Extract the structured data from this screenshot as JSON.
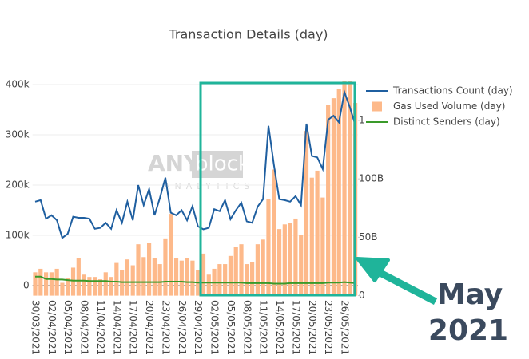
{
  "chart_data": {
    "type": "combo",
    "title": "Transaction Details (day)",
    "categories": [
      "30/03/2021",
      null,
      null,
      "02/04/2021",
      null,
      null,
      "05/04/2021",
      null,
      null,
      "08/04/2021",
      null,
      null,
      "11/04/2021",
      null,
      null,
      "14/04/2021",
      null,
      null,
      "17/04/2021",
      null,
      null,
      "20/04/2021",
      null,
      null,
      "23/04/2021",
      null,
      null,
      "26/04/2021",
      null,
      null,
      "29/04/2021",
      null,
      null,
      "02/05/2021",
      null,
      null,
      "05/05/2021",
      null,
      null,
      "08/05/2021",
      null,
      null,
      "11/05/2021",
      null,
      null,
      "14/05/2021",
      null,
      null,
      "17/05/2021",
      null,
      null,
      "20/05/2021",
      null,
      null,
      "23/05/2021",
      null,
      null,
      "26/05/2021",
      null,
      null
    ],
    "series": [
      {
        "name": "Transactions Count (day)",
        "type": "line",
        "color": "#1f5fa0",
        "values": [
          167000,
          170000,
          133000,
          140000,
          130000,
          95000,
          103000,
          137000,
          135000,
          135000,
          133000,
          113000,
          115000,
          125000,
          113000,
          150000,
          125000,
          167000,
          130000,
          200000,
          160000,
          192000,
          140000,
          175000,
          215000,
          145000,
          140000,
          150000,
          130000,
          158000,
          118000,
          112000,
          115000,
          152000,
          148000,
          170000,
          132000,
          150000,
          165000,
          128000,
          125000,
          157000,
          172000,
          318000,
          240000,
          172000,
          170000,
          167000,
          178000,
          160000,
          322000,
          258000,
          255000,
          232000,
          330000,
          338000,
          325000,
          385000,
          355000,
          320000
        ]
      },
      {
        "name": "Gas Used Volume (day)",
        "type": "bar",
        "axis": "y2",
        "color": "#fdb98a",
        "values": [
          20000000000,
          23000000000,
          20000000000,
          20000000000,
          23000000000,
          11000000000,
          15000000000,
          24000000000,
          32000000000,
          18000000000,
          16000000000,
          16000000000,
          14000000000,
          20000000000,
          16000000000,
          28000000000,
          22000000000,
          31000000000,
          26000000000,
          44000000000,
          33000000000,
          45000000000,
          32000000000,
          27000000000,
          49000000000,
          70000000000,
          32000000000,
          30000000000,
          32000000000,
          30000000000,
          22000000000,
          36000000000,
          18000000000,
          23000000000,
          27000000000,
          27000000000,
          34000000000,
          42000000000,
          44000000000,
          27000000000,
          29000000000,
          44000000000,
          48000000000,
          83000000000,
          108000000000,
          57000000000,
          61000000000,
          62000000000,
          66000000000,
          52000000000,
          141000000000,
          101000000000,
          107000000000,
          84000000000,
          163000000000,
          169000000000,
          177000000000,
          184000000000,
          184000000000,
          165000000000
        ]
      },
      {
        "name": "Distinct Senders (day)",
        "type": "line",
        "color": "#3a9a2a",
        "values": [
          18000,
          18000,
          13000,
          13000,
          12000,
          12000,
          11000,
          10000,
          10000,
          10000,
          9000,
          9000,
          9000,
          9000,
          8000,
          8000,
          7000,
          7000,
          7000,
          7000,
          7000,
          7000,
          7000,
          7000,
          8000,
          8000,
          8000,
          8000,
          7000,
          7000,
          6000,
          6000,
          6000,
          6000,
          6000,
          6000,
          6000,
          6000,
          6000,
          5000,
          5000,
          5000,
          5000,
          5000,
          4000,
          4000,
          4000,
          5000,
          5000,
          5000,
          5000,
          5000,
          5000,
          5000,
          6000,
          6000,
          6000,
          7000,
          6000,
          5000
        ]
      }
    ],
    "ylim": [
      -20000,
      410000
    ],
    "yticks": [
      0,
      {
        "value": 100000,
        "label": "100k"
      },
      {
        "value": 200000,
        "label": "200k"
      },
      {
        "value": 300000,
        "label": "300k"
      },
      {
        "value": 400000,
        "label": "400k"
      }
    ],
    "y2lim": [
      0,
      185000000000
    ],
    "y2ticks": [
      0,
      {
        "value": 50000000000,
        "label": "50B"
      },
      {
        "value": 100000000000,
        "label": "100B"
      },
      {
        "value": 150000000000,
        "label": "150B"
      }
    ],
    "grid": true,
    "legend": "top-right",
    "watermark": {
      "brand": "ANY",
      "brand_box": "block",
      "sub": "ANALYTICS"
    },
    "annotation": [
      "May",
      "2021"
    ]
  }
}
